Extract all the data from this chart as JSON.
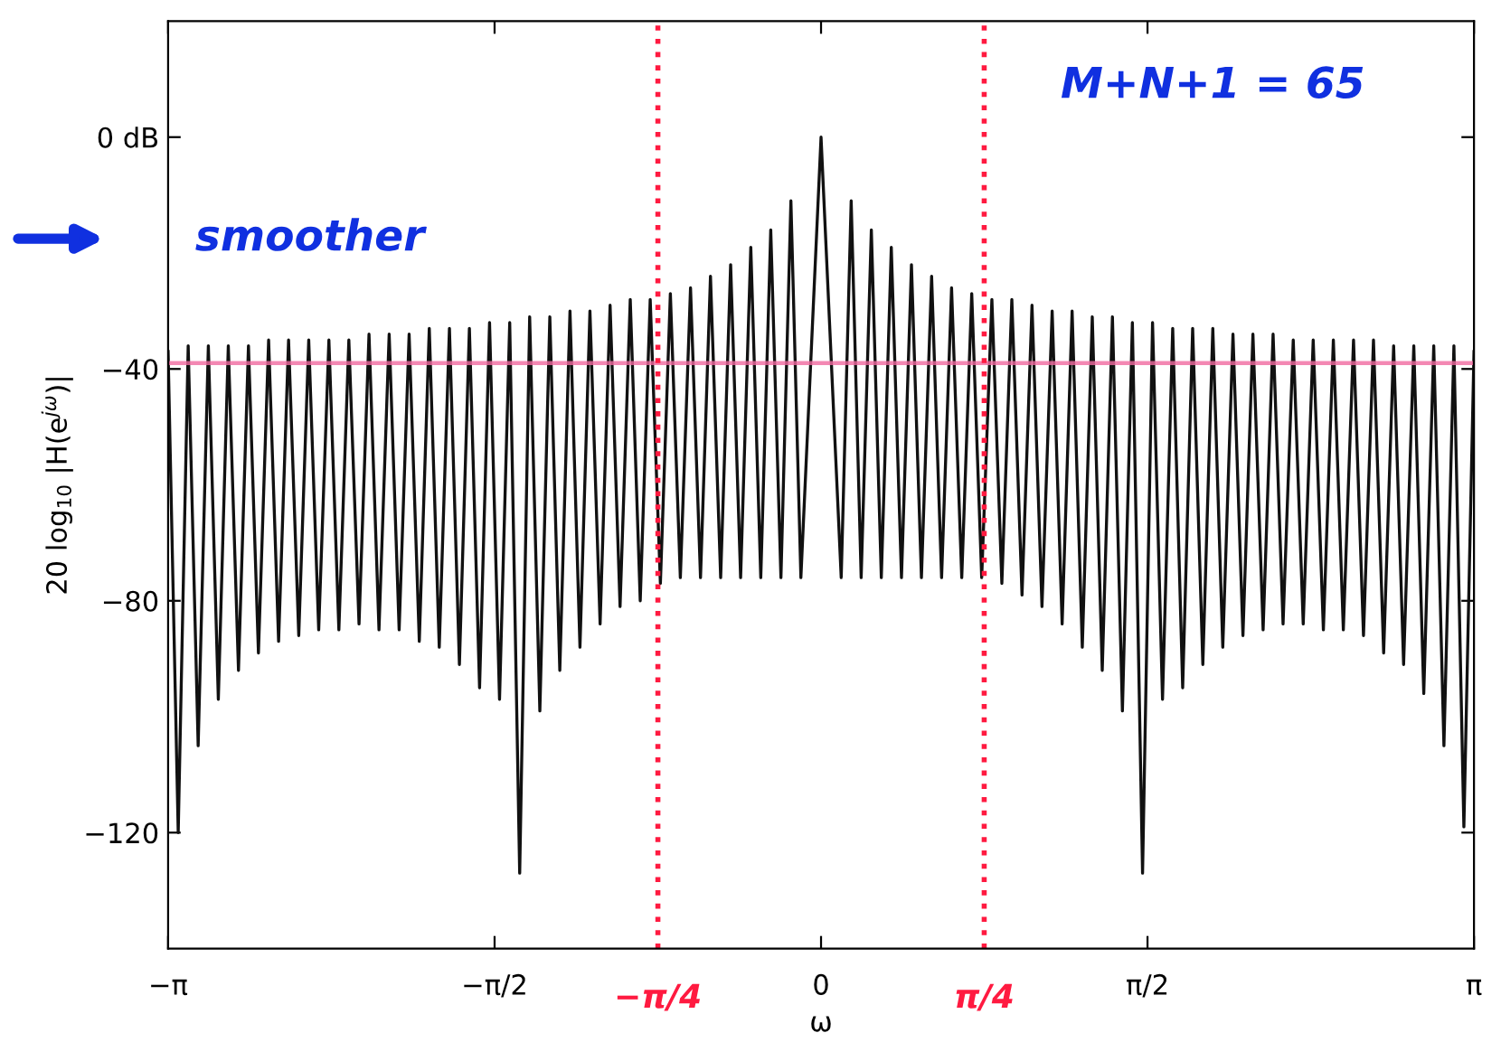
{
  "chart_data": {
    "type": "line",
    "xlabel": "ω",
    "ylabel": "20 log$_{10}$ |H(e$^{jω}$)|",
    "xlim": [
      -3.1416,
      3.1416
    ],
    "ylim": [
      -140,
      20
    ],
    "xticks": [
      {
        "value": -3.1416,
        "label": "−π"
      },
      {
        "value": -1.5708,
        "label": "−π/2"
      },
      0,
      {
        "value": 1.5708,
        "label": "π/2"
      },
      {
        "value": 3.1416,
        "label": "π"
      }
    ],
    "yticks": [
      {
        "value": -120,
        "label": "−120"
      },
      {
        "value": -80,
        "label": "−80"
      },
      {
        "value": -40,
        "label": "−40"
      },
      {
        "value": 0,
        "label": "0 dB"
      }
    ],
    "grid": false,
    "marker": "none",
    "line_style": "solid",
    "series": [
      {
        "color": "#111111",
        "x": [
          -3.1416,
          -3.093,
          -3.045,
          -2.997,
          -2.948,
          -2.9,
          -2.852,
          -2.803,
          -2.755,
          -2.707,
          -2.658,
          -2.61,
          -2.562,
          -2.513,
          -2.465,
          -2.417,
          -2.368,
          -2.32,
          -2.272,
          -2.223,
          -2.175,
          -2.127,
          -2.078,
          -2.03,
          -1.982,
          -1.933,
          -1.885,
          -1.837,
          -1.788,
          -1.74,
          -1.692,
          -1.643,
          -1.595,
          -1.547,
          -1.498,
          -1.45,
          -1.402,
          -1.353,
          -1.305,
          -1.257,
          -1.208,
          -1.16,
          -1.112,
          -1.063,
          -1.015,
          -0.967,
          -0.918,
          -0.87,
          -0.822,
          -0.773,
          -0.725,
          -0.677,
          -0.628,
          -0.58,
          -0.532,
          -0.483,
          -0.435,
          -0.387,
          -0.338,
          -0.29,
          -0.242,
          -0.193,
          -0.145,
          -0.097,
          0,
          0.097,
          0.145,
          0.193,
          0.242,
          0.29,
          0.338,
          0.387,
          0.435,
          0.483,
          0.532,
          0.58,
          0.628,
          0.677,
          0.725,
          0.773,
          0.822,
          0.87,
          0.918,
          0.967,
          1.015,
          1.063,
          1.112,
          1.16,
          1.208,
          1.257,
          1.305,
          1.353,
          1.402,
          1.45,
          1.498,
          1.547,
          1.595,
          1.643,
          1.692,
          1.74,
          1.788,
          1.837,
          1.885,
          1.933,
          1.982,
          2.03,
          2.078,
          2.127,
          2.175,
          2.223,
          2.272,
          2.32,
          2.368,
          2.417,
          2.465,
          2.513,
          2.562,
          2.61,
          2.658,
          2.707,
          2.755,
          2.803,
          2.852,
          2.9,
          2.948,
          2.997,
          3.045,
          3.093,
          3.1416
        ],
        "values": [
          -37,
          -120,
          -36,
          -105,
          -36,
          -97,
          -36,
          -92,
          -36,
          -89,
          -35,
          -87,
          -35,
          -86,
          -35,
          -85,
          -35,
          -85,
          -35,
          -84,
          -34,
          -85,
          -34,
          -85,
          -34,
          -87,
          -33,
          -88,
          -33,
          -91,
          -33,
          -95,
          -32,
          -97,
          -32,
          -127,
          -31,
          -99,
          -31,
          -92,
          -30,
          -88,
          -30,
          -84,
          -29,
          -81,
          -28,
          -80,
          -28,
          -77,
          -27,
          -76,
          -26,
          -76,
          -24,
          -76,
          -22,
          -76,
          -19,
          -76,
          -16,
          -76,
          -11,
          -76,
          0,
          -76,
          -11,
          -76,
          -16,
          -76,
          -19,
          -76,
          -22,
          -76,
          -24,
          -76,
          -26,
          -76,
          -27,
          -76,
          -28,
          -77,
          -28,
          -79,
          -29,
          -81,
          -30,
          -84,
          -30,
          -88,
          -31,
          -92,
          -31,
          -99,
          -32,
          -127,
          -32,
          -97,
          -33,
          -95,
          -33,
          -91,
          -33,
          -88,
          -34,
          -86,
          -34,
          -85,
          -34,
          -84,
          -35,
          -84,
          -35,
          -85,
          -35,
          -85,
          -35,
          -86,
          -35,
          -89,
          -36,
          -91,
          -36,
          -96,
          -36,
          -105,
          -36,
          -119,
          -37
        ]
      }
    ],
    "ref_lines": [
      {
        "axis": "y",
        "value": -39,
        "color": "#f06aa0",
        "line_style": "solid"
      },
      {
        "axis": "x",
        "value": -0.785,
        "label": "−π/4",
        "color": "#ff1a40",
        "line_style": "dotted"
      },
      {
        "axis": "x",
        "value": 0.785,
        "label": "π/4",
        "color": "#ff1a40",
        "line_style": "dotted"
      }
    ],
    "annotations": [
      "M+N+1 = 65",
      "smoother"
    ]
  }
}
